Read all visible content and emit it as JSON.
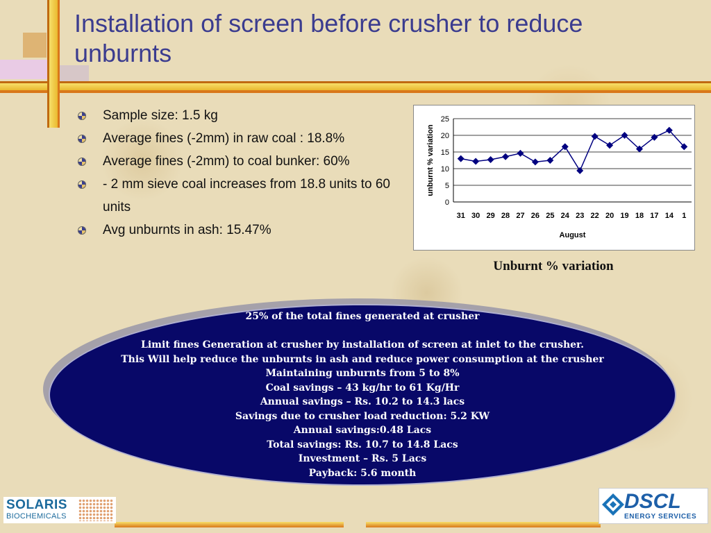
{
  "title": "Installation of screen before crusher to reduce unburnts",
  "bullets": [
    "Sample size: 1.5 kg",
    "Average fines (-2mm) in raw coal : 18.8%",
    "Average fines (-2mm) to coal bunker: 60%",
    "- 2 mm sieve coal increases from 18.8 units to 60 units",
    "Avg unburnts in ash: 15.47%"
  ],
  "chart_caption": "Unburnt % variation",
  "chart_data": {
    "type": "line",
    "categories": [
      "31",
      "30",
      "29",
      "28",
      "27",
      "26",
      "25",
      "24",
      "23",
      "22",
      "20",
      "19",
      "18",
      "17",
      "14",
      "1"
    ],
    "series": [
      {
        "values": [
          13.0,
          12.2,
          12.7,
          13.6,
          14.6,
          12.0,
          12.5,
          16.6,
          9.4,
          19.7,
          17.0,
          20.0,
          15.9,
          19.4,
          21.5,
          16.6
        ]
      }
    ],
    "xlabel": "August",
    "ylabel": "unburnt % variation",
    "ylim": [
      0,
      25
    ],
    "yticks": [
      0,
      5,
      10,
      15,
      20,
      25
    ],
    "grid": true,
    "line_color": "#000080",
    "marker": "diamond"
  },
  "ellipse_lines": [
    "25% of the total fines generated at crusher",
    "",
    "Limit fines Generation at crusher by installation of screen at inlet to the crusher.",
    "This Will help reduce the unburnts in ash and reduce power consumption at the crusher",
    "Maintaining unburnts from 5 to 8%",
    "Coal savings –  43 kg/hr to 61 Kg/Hr",
    "Annual savings – Rs. 10.2 to 14.3 lacs",
    "Savings due to crusher load reduction: 5.2 KW",
    "Annual savings:0.48 Lacs",
    "Total savings: Rs. 10.7 to 14.8 Lacs",
    "Investment – Rs. 5 Lacs",
    "Payback: 5.6 month"
  ],
  "logos": {
    "left_line1": "SOLARIS",
    "left_line2": "BIOCHEMICALS",
    "right_line1": "DSCL",
    "right_line2": "ENERGY SERVICES"
  },
  "colors": {
    "title": "#3b3c8f",
    "ellipse_fill": "#080868",
    "bar_orange": "#e2891c",
    "bar_yellow": "#f4d44a"
  }
}
